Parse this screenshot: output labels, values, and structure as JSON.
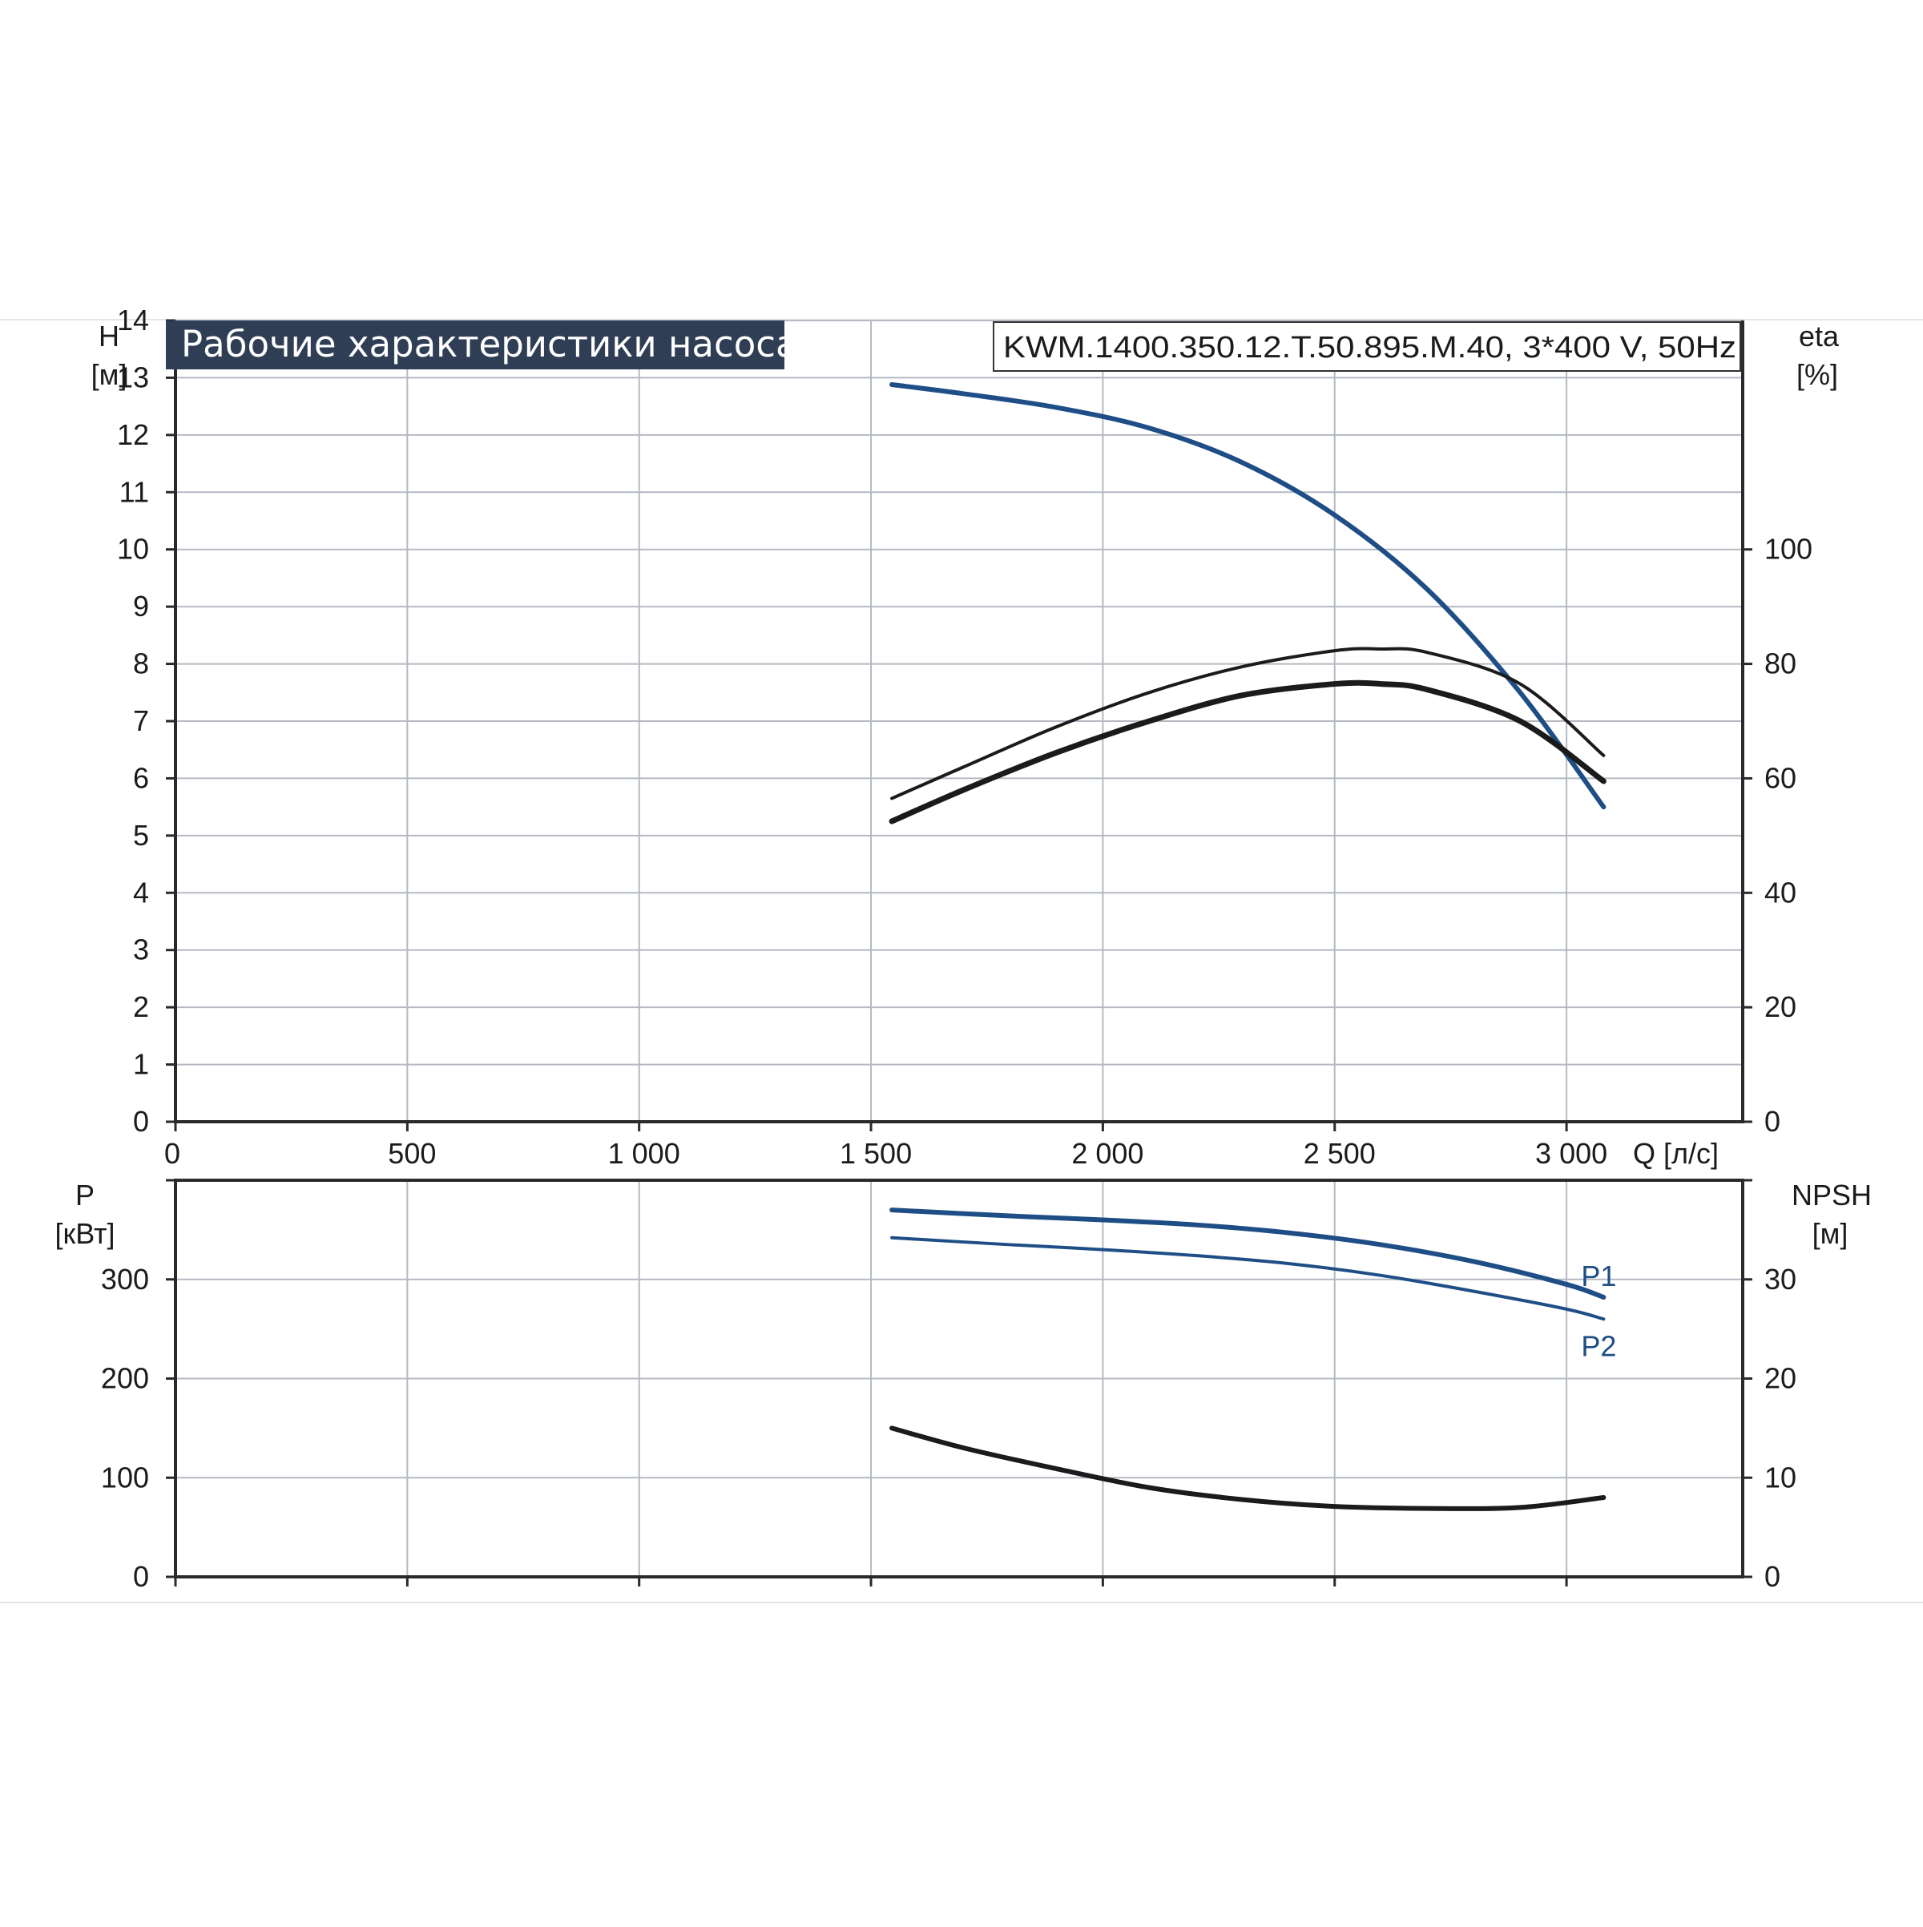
{
  "chart_data": [
    {
      "type": "line",
      "title": "Рабочие характеристики насоса",
      "model_label": "KWM.1400.350.12.T.50.895.M.40, 3*400 V, 50Hz",
      "xlabel": "Q [л/с]",
      "x_ticks": [
        0,
        500,
        1000,
        1500,
        2000,
        2500,
        3000
      ],
      "x_tick_labels": [
        "0",
        "500",
        "1 000",
        "1 500",
        "2 000",
        "2 500",
        "3 000"
      ],
      "xlim": [
        0,
        3380
      ],
      "ylabel_left": [
        "H",
        "[м]"
      ],
      "ylim_left": [
        0,
        14
      ],
      "y_ticks_left": [
        0,
        1,
        2,
        3,
        4,
        5,
        6,
        7,
        8,
        9,
        10,
        11,
        12,
        13,
        14
      ],
      "ylabel_right": [
        "eta",
        "[%]"
      ],
      "ylim_right": [
        0,
        140
      ],
      "y_ticks_right": [
        0,
        20,
        40,
        60,
        80,
        100
      ],
      "grid": true,
      "series": [
        {
          "axis": "left",
          "color": "#1f4e86",
          "x": [
            1545,
            1700,
            1900,
            2100,
            2300,
            2500,
            2700,
            2900,
            3080
          ],
          "y": [
            12.88,
            12.72,
            12.48,
            12.12,
            11.52,
            10.6,
            9.3,
            7.5,
            5.5
          ]
        },
        {
          "axis": "right",
          "color": "#1b1b1b",
          "x": [
            1545,
            1700,
            1900,
            2100,
            2300,
            2500,
            2600,
            2700,
            2900,
            3080
          ],
          "y": [
            56.5,
            62,
            69,
            75,
            79.5,
            82.3,
            82.6,
            82,
            76.5,
            64
          ]
        },
        {
          "axis": "right",
          "color": "#1b1b1b",
          "x": [
            1545,
            1700,
            1900,
            2100,
            2300,
            2500,
            2600,
            2700,
            2900,
            3080
          ],
          "y": [
            52.5,
            58,
            64.5,
            70,
            74.5,
            76.5,
            76.5,
            75.5,
            70,
            59.5
          ]
        }
      ]
    },
    {
      "type": "line",
      "ylabel_left": [
        "P",
        "[кВт]"
      ],
      "ylim_left": [
        0,
        400
      ],
      "y_ticks_left": [
        0,
        100,
        200,
        300
      ],
      "ylabel_right": [
        "NPSH",
        "[м]"
      ],
      "ylim_right": [
        0,
        40
      ],
      "y_ticks_right": [
        0,
        10,
        20,
        30
      ],
      "xlim": [
        0,
        3380
      ],
      "x_ticks": [
        0,
        500,
        1000,
        1500,
        2000,
        2500,
        3000
      ],
      "grid": true,
      "series": [
        {
          "name": "P1",
          "axis": "left",
          "color": "#1f4e86",
          "x": [
            1545,
            1800,
            2000,
            2200,
            2400,
            2600,
            2800,
            3000,
            3080
          ],
          "y": [
            370,
            364,
            360,
            355,
            347,
            335,
            318,
            295,
            282
          ]
        },
        {
          "name": "P2",
          "axis": "left",
          "color": "#1f4e86",
          "x": [
            1545,
            1800,
            2000,
            2200,
            2400,
            2600,
            2800,
            3000,
            3080
          ],
          "y": [
            342,
            335,
            330,
            324,
            316,
            304,
            288,
            270,
            260
          ]
        },
        {
          "axis": "right",
          "color": "#1b1b1b",
          "x": [
            1545,
            1700,
            1900,
            2100,
            2300,
            2500,
            2700,
            2900,
            3080
          ],
          "y": [
            15.0,
            13.0,
            10.9,
            9.0,
            7.8,
            7.1,
            6.9,
            7.0,
            8.0
          ]
        }
      ]
    }
  ]
}
